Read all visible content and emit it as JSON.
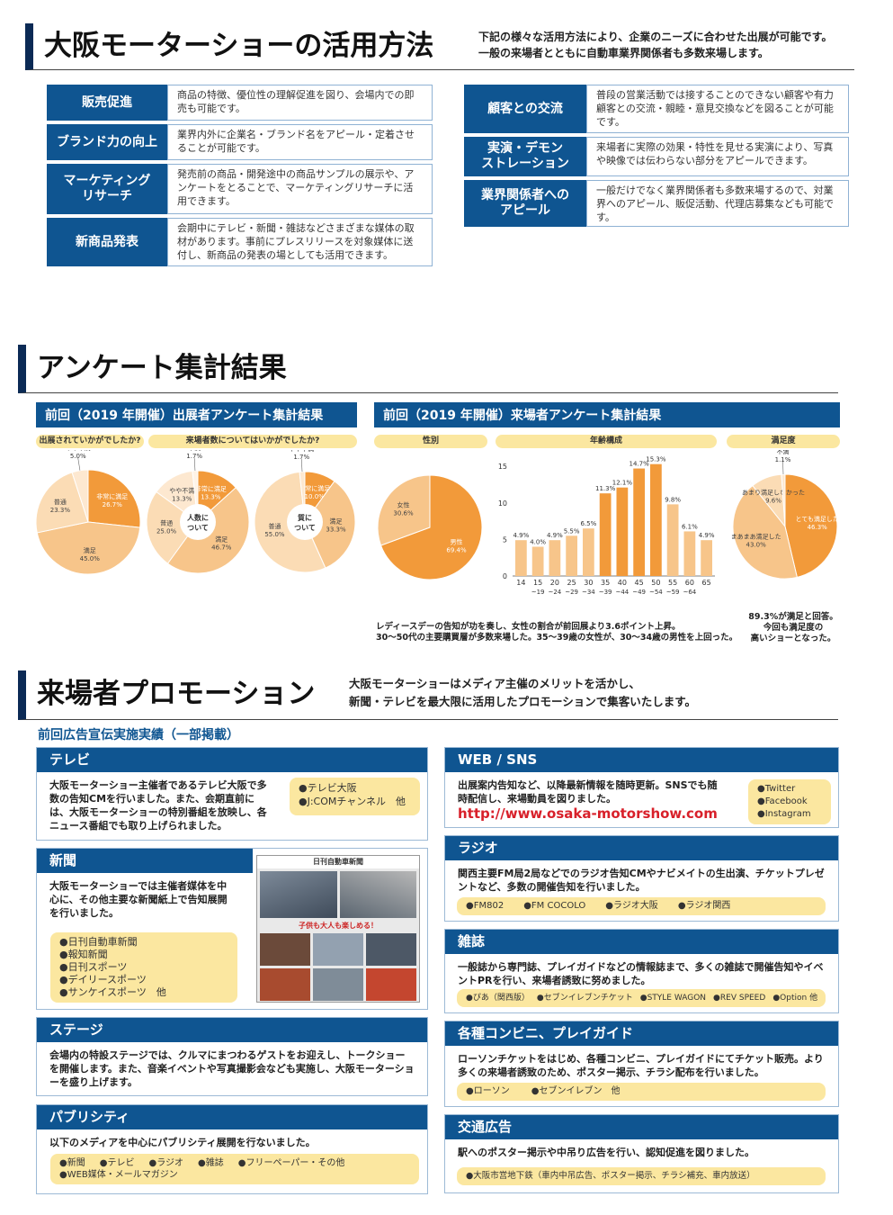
{
  "usage": {
    "title": "大阪モーターショーの活用方法",
    "intro1": "下記の様々な活用方法により、企業のニーズに合わせた出展が可能です。",
    "intro2": "一般の来場者とともに自動車業界関係者も多数来場します。",
    "left": [
      {
        "label": "販売促進",
        "desc": "商品の特徴、優位性の理解促進を図り、会場内での即売も可能です。"
      },
      {
        "label": "ブランド力の向上",
        "desc": "業界内外に企業名・ブランド名をアピール・定着させることが可能です。"
      },
      {
        "label": "マーケティング\nリサーチ",
        "desc": "発売前の商品・開発途中の商品サンプルの展示や、アンケートをとることで、マーケティングリサーチに活用できます。"
      },
      {
        "label": "新商品発表",
        "desc": "会期中にテレビ・新聞・雑誌などさまざまな媒体の取材があります。事前にプレスリリースを対象媒体に送付し、新商品の発表の場としても活用できます。"
      }
    ],
    "right": [
      {
        "label": "顧客との交流",
        "desc": "普段の営業活動では接することのできない顧客や有力顧客との交流・親睦・意見交換などを図ることが可能です。"
      },
      {
        "label": "実演・デモン\nストレーション",
        "desc": "来場者に実際の効果・特性を見せる実演により、写真や映像では伝わらない部分をアピールできます。"
      },
      {
        "label": "業界関係者への\nアピール",
        "desc": "一般だけでなく業界関係者も多数来場するので、対業界へのアピール、販促活動、代理店募集なども可能です。"
      }
    ]
  },
  "survey": {
    "title": "アンケート集計結果",
    "exhibitor_header": "前回（2019 年開催）出展者アンケート集計結果",
    "visitor_header": "前回（2019 年開催）来場者アンケート集計結果",
    "q1": "出展されていかがでしたか?",
    "q2": "来場者数についてはいかがでしたか?",
    "gender_label": "性別",
    "age_label": "年齢構成",
    "satisfaction_label": "満足度",
    "pie1_center": "",
    "pie2_center": "人数に\nついて",
    "pie3_center": "質に\nついて",
    "note_left1": "レディースデーの告知が功を奏し、女性の割合が前回展より3.6ポイント上昇。",
    "note_left2": "30～50代の主要購買層が多数来場した。35～39歳の女性が、30～34歳の男性を上回った。",
    "note_right": "89.3%が満足と回答。\n今回も満足度の\n高いショーとなった。"
  },
  "chart_data": [
    {
      "type": "pie",
      "title": "出展されていかがでしたか?",
      "slices": [
        {
          "label": "非常に満足",
          "value": 26.7
        },
        {
          "label": "満足",
          "value": 45.0
        },
        {
          "label": "普通",
          "value": 23.3
        },
        {
          "label": "やや不満",
          "value": 5.0
        }
      ]
    },
    {
      "type": "pie",
      "title": "人数について",
      "slices": [
        {
          "label": "非常に満足",
          "value": 13.3
        },
        {
          "label": "満足",
          "value": 46.7
        },
        {
          "label": "普通",
          "value": 25.0
        },
        {
          "label": "やや不満",
          "value": 13.3
        },
        {
          "label": "不満",
          "value": 1.7
        }
      ]
    },
    {
      "type": "pie",
      "title": "質について",
      "slices": [
        {
          "label": "非常に満足",
          "value": 10.0
        },
        {
          "label": "満足",
          "value": 33.3
        },
        {
          "label": "普通",
          "value": 55.0
        },
        {
          "label": "やや不満",
          "value": 1.7
        }
      ]
    },
    {
      "type": "pie",
      "title": "性別",
      "slices": [
        {
          "label": "男性",
          "value": 69.4
        },
        {
          "label": "女性",
          "value": 30.6
        }
      ]
    },
    {
      "type": "bar",
      "title": "年齢構成",
      "categories": [
        "14歳以下",
        "15~19歳",
        "20~24歳",
        "25~29歳",
        "30~34歳",
        "35~39歳",
        "40~44歳",
        "45~49歳",
        "50~54歳",
        "55~59歳",
        "60~64歳",
        "65歳以上"
      ],
      "values": [
        4.9,
        4.0,
        4.9,
        5.5,
        6.5,
        11.3,
        12.1,
        14.7,
        15.3,
        9.8,
        6.1,
        4.9
      ],
      "ylim": [
        0,
        16
      ],
      "yticks": [
        0,
        5,
        10,
        15
      ]
    },
    {
      "type": "pie",
      "title": "満足度",
      "slices": [
        {
          "label": "とても満足した",
          "value": 46.3
        },
        {
          "label": "まあまあ満足した",
          "value": 43.0
        },
        {
          "label": "あまり満足しなかった",
          "value": 9.6
        },
        {
          "label": "不満",
          "value": 1.1
        }
      ]
    }
  ],
  "promo": {
    "title": "来場者プロモーション",
    "intro1": "大阪モーターショーはメディア主催のメリットを活かし、",
    "intro2": "新聞・テレビを最大限に活用したプロモーションで集客いたします。",
    "subhead": "前回広告宣伝実施実績（一部掲載）",
    "tv": {
      "title": "テレビ",
      "body": "大阪モーターショー主催者であるテレビ大阪で多数の告知CMを行いました。また、会期直前には、大阪モーターショーの特別番組を放映し、各ニュース番組でも取り上げられました。",
      "items": [
        "●テレビ大阪",
        "●J:COMチャンネル　他"
      ]
    },
    "news": {
      "title": "新聞",
      "body": "大阪モーターショーでは主催者媒体を中心に、その他主要な新聞紙上で告知展開を行いました。",
      "items": [
        "●日刊自動車新聞",
        "●報知新聞",
        "●日刊スポーツ",
        "●デイリースポーツ",
        "●サンケイスポーツ　他"
      ],
      "photo_caption": "日刊自動車新聞",
      "photo_headline": "子供も大人も楽しめる！"
    },
    "stage": {
      "title": "ステージ",
      "body": "会場内の特設ステージでは、クルマにまつわるゲストをお迎えし、トークショーを開催します。また、音楽イベントや写真撮影会なども実施し、大阪モーターショーを盛り上げます。"
    },
    "pub": {
      "title": "パブリシティ",
      "body": "以下のメディアを中心にパブリシティ展開を行ないました。",
      "items1": [
        "●新聞",
        "●テレビ",
        "●ラジオ",
        "●雑誌",
        "●フリーペーパー・その他"
      ],
      "items2": "●WEB媒体・メールマガジン"
    },
    "web": {
      "title": "WEB / SNS",
      "body": "出展案内告知など、以降最新情報を随時更新。SNSでも随時配信し、来場動員を図りました。",
      "url": "http://www.osaka-motorshow.com",
      "items": [
        "●Twitter",
        "●Facebook",
        "●Instagram"
      ]
    },
    "radio": {
      "title": "ラジオ",
      "body": "関西主要FM局2局などでのラジオ告知CMやナビメイトの生出演、チケットプレゼントなど、多数の開催告知を行いました。",
      "items": [
        "●FM802",
        "●FM COCOLO",
        "●ラジオ大阪",
        "●ラジオ関西"
      ]
    },
    "mag": {
      "title": "雑誌",
      "body": "一般誌から専門誌、プレイガイドなどの情報誌まで、多くの雑誌で開催告知やイベントPRを行い、来場者誘致に努めました。",
      "items": [
        "●ぴあ（関西版）",
        "●セブンイレブンチケット",
        "●STYLE WAGON",
        "●REV SPEED",
        "●Option 他"
      ]
    },
    "conv": {
      "title": "各種コンビニ、プレイガイド",
      "body": "ローソンチケットをはじめ、各種コンビニ、プレイガイドにてチケット販売。より多くの来場者誘致のため、ポスター掲示、チラシ配布を行いました。",
      "items": [
        "●ローソン",
        "●セブンイレブン　他"
      ]
    },
    "traffic": {
      "title": "交通広告",
      "body": "駅へのポスター掲示や中吊り広告を行い、認知促進を図りました。",
      "items": "●大阪市営地下鉄（車内中吊広告、ポスター掲示、チラシ補充、車内放送）"
    }
  },
  "colors": {
    "navy": "#0f5591",
    "orange": "#f29a3a",
    "light_orange": "#f7c58a",
    "pale_orange": "#fbdcb5",
    "yellow": "#fbe7a0"
  }
}
